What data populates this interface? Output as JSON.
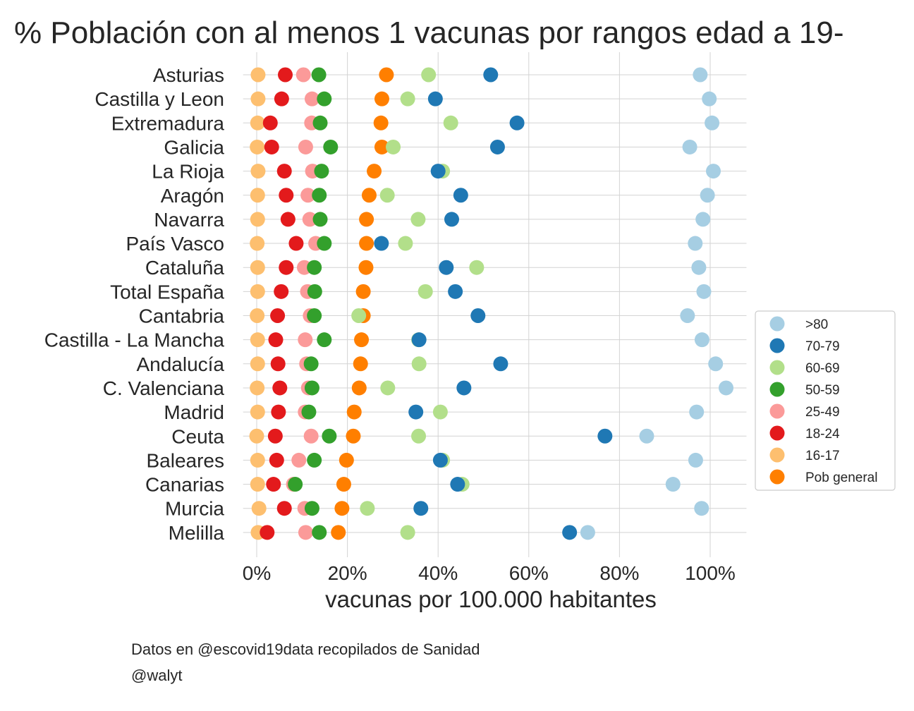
{
  "chart_data": {
    "type": "scatter",
    "title": "% Población con al menos 1 vacunas por rangos edad a 19-",
    "xlabel": "vacunas por 100.000 habitantes",
    "ylabel": "",
    "xlim": [
      -0.03,
      1.08
    ],
    "x_ticks": [
      0,
      0.2,
      0.4,
      0.6,
      0.8,
      1.0
    ],
    "x_tick_labels": [
      "0%",
      "20%",
      "40%",
      "60%",
      "80%",
      "100%"
    ],
    "grid": true,
    "legend_position": "right",
    "highlight_color": "#ff0000",
    "categories": [
      "Asturias ",
      "Castilla y Leon",
      "Extremadura",
      "Galicia",
      "La Rioja",
      "Aragón",
      "Navarra",
      "País Vasco",
      "Cataluña",
      "Total España",
      "Cantabria",
      "Castilla - La Mancha",
      "Andalucía",
      "C. Valenciana",
      "Madrid",
      "Ceuta",
      "Baleares",
      "Canarias",
      "Murcia",
      "Melilla"
    ],
    "highlight_category": "Total España",
    "series": [
      {
        "name": "16-17",
        "color": "#fdbf6f",
        "values": [
          0.003,
          0.003,
          0.002,
          0.001,
          0.003,
          0.002,
          0.002,
          0.001,
          0.002,
          0.002,
          0.001,
          0.002,
          0.002,
          0.001,
          0.002,
          0.0,
          0.002,
          0.002,
          0.005,
          0.003
        ]
      },
      {
        "name": "18-24",
        "color": "#e31a1c",
        "values": [
          0.063,
          0.055,
          0.03,
          0.033,
          0.061,
          0.065,
          0.069,
          0.087,
          0.065,
          0.054,
          0.046,
          0.042,
          0.047,
          0.051,
          0.048,
          0.041,
          0.044,
          0.037,
          0.061,
          0.023
        ]
      },
      {
        "name": "25-49",
        "color": "#fb9a99",
        "values": [
          0.103,
          0.122,
          0.121,
          0.108,
          0.123,
          0.113,
          0.117,
          0.13,
          0.105,
          0.112,
          0.118,
          0.107,
          0.11,
          0.114,
          0.107,
          0.12,
          0.093,
          0.081,
          0.106,
          0.108
        ]
      },
      {
        "name": "50-59",
        "color": "#33a02c",
        "values": [
          0.137,
          0.149,
          0.14,
          0.163,
          0.143,
          0.138,
          0.14,
          0.149,
          0.127,
          0.128,
          0.127,
          0.149,
          0.12,
          0.122,
          0.115,
          0.16,
          0.127,
          0.085,
          0.122,
          0.138
        ]
      },
      {
        "name": "Pob general",
        "color": "#ff7f00",
        "values": [
          0.286,
          0.276,
          0.274,
          0.276,
          0.259,
          0.248,
          0.242,
          0.242,
          0.241,
          0.235,
          0.235,
          0.231,
          0.229,
          0.226,
          0.215,
          0.213,
          0.198,
          0.192,
          0.188,
          0.18
        ]
      },
      {
        "name": "60-69",
        "color": "#b2df8a",
        "values": [
          0.379,
          0.333,
          0.428,
          0.301,
          0.41,
          0.288,
          0.356,
          0.328,
          0.485,
          0.372,
          0.225,
          0.357,
          0.358,
          0.289,
          0.405,
          0.357,
          0.41,
          0.453,
          0.244,
          0.333
        ]
      },
      {
        "name": "70-79",
        "color": "#1f78b4",
        "values": [
          0.516,
          0.394,
          0.574,
          0.531,
          0.4,
          0.45,
          0.43,
          0.275,
          0.418,
          0.438,
          0.488,
          0.358,
          0.538,
          0.457,
          0.351,
          0.768,
          0.405,
          0.443,
          0.362,
          0.69
        ]
      },
      {
        "name": ">80",
        "color": "#a6cee3",
        "values": [
          0.978,
          0.998,
          1.004,
          0.955,
          1.007,
          0.994,
          0.984,
          0.967,
          0.975,
          0.986,
          0.95,
          0.982,
          1.012,
          1.035,
          0.97,
          0.86,
          0.968,
          0.918,
          0.981,
          0.73
        ]
      }
    ],
    "legend_order": [
      ">80",
      "70-79",
      "60-69",
      "50-59",
      "25-49",
      "18-24",
      "16-17",
      "Pob general"
    ]
  },
  "footer": {
    "source": "Datos en @escovid19data recopilados de Sanidad",
    "author": "@walyt"
  }
}
